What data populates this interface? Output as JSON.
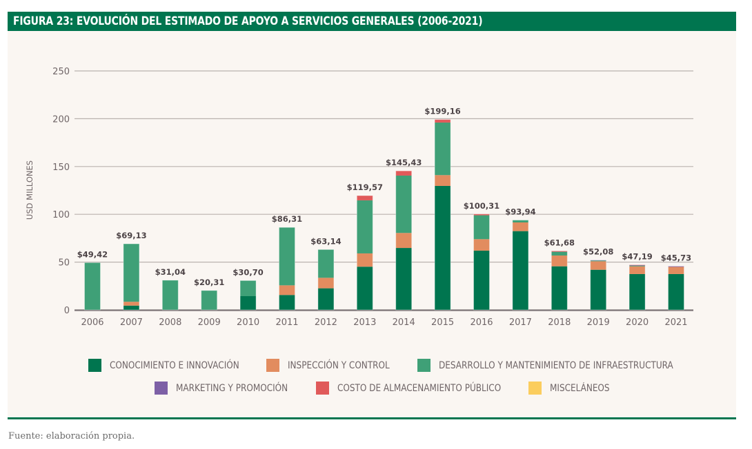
{
  "figure": {
    "title": "FIGURA 23: EVOLUCIÓN DEL ESTIMADO DE APOYO A SERVICIOS GENERALES (2006-2021)",
    "source": "Fuente: elaboración propia."
  },
  "chart_data": {
    "type": "bar",
    "stacked": true,
    "title": "FIGURA 23: EVOLUCIÓN DEL ESTIMADO DE APOYO A SERVICIOS GENERALES (2006-2021)",
    "xlabel": "",
    "ylabel": "USD MILLONES",
    "ylim": [
      0,
      250
    ],
    "yticks": [
      0,
      50,
      100,
      150,
      200,
      250
    ],
    "grid": true,
    "legend_position": "bottom",
    "categories": [
      "2006",
      "2007",
      "2008",
      "2009",
      "2010",
      "2011",
      "2012",
      "2013",
      "2014",
      "2015",
      "2016",
      "2017",
      "2018",
      "2019",
      "2020",
      "2021"
    ],
    "totals": [
      49.42,
      69.13,
      31.04,
      20.31,
      30.7,
      86.31,
      63.14,
      119.57,
      145.43,
      199.16,
      100.31,
      93.94,
      61.68,
      52.08,
      47.19,
      45.73
    ],
    "total_labels": [
      "$49,42",
      "$69,13",
      "$31,04",
      "$20,31",
      "$30,70",
      "$86,31",
      "$63,14",
      "$119,57",
      "$145,43",
      "$199,16",
      "$100,31",
      "$93,94",
      "$61,68",
      "$52,08",
      "$47,19",
      "$45,73"
    ],
    "series": [
      {
        "name": "CONOCIMIENTO E INNOVACIÓN",
        "color": "#00754f",
        "values": [
          0,
          4.5,
          0,
          0,
          14.4,
          15.6,
          22.6,
          45.2,
          64.8,
          129.7,
          62.0,
          82.4,
          45.6,
          42.0,
          37.5,
          37.5
        ]
      },
      {
        "name": "INSPECCIÓN Y CONTROL",
        "color": "#e28c5f",
        "values": [
          0,
          4.0,
          0,
          0,
          0,
          10.1,
          11.0,
          13.9,
          15.7,
          11.3,
          12.0,
          9.1,
          11.3,
          8.9,
          8.1,
          7.5
        ]
      },
      {
        "name": "DESARROLLO Y MANTENIMIENTO DE INFRAESTRUCTURA",
        "color": "#3fa077",
        "values": [
          49.42,
          60.63,
          31.04,
          20.31,
          16.3,
          60.61,
          29.54,
          55.5,
          60.0,
          55.0,
          25.0,
          2.44,
          3.9,
          0.8,
          0.9,
          0
        ]
      },
      {
        "name": "MARKETING Y PROMOCIÓN",
        "color": "#7d60a6",
        "values": [
          0,
          0,
          0,
          0,
          0,
          0,
          0,
          0,
          0,
          0,
          0,
          0,
          0,
          0.38,
          0.2,
          0.73
        ]
      },
      {
        "name": "COSTO DE ALMACENAMIENTO PÚBLICO",
        "color": "#e05a5a",
        "values": [
          0,
          0,
          0,
          0,
          0,
          0,
          0,
          4.97,
          4.93,
          3.16,
          1.31,
          0,
          0.88,
          0,
          0.49,
          0
        ]
      },
      {
        "name": "MISCELÁNEOS",
        "color": "#fbcd5e",
        "values": [
          0,
          0,
          0,
          0,
          0,
          0,
          0,
          0,
          0,
          0,
          0,
          0,
          0,
          0,
          0,
          0
        ]
      }
    ]
  },
  "legend": {
    "row1": [
      0,
      1,
      2
    ],
    "row2": [
      3,
      4,
      5
    ]
  }
}
